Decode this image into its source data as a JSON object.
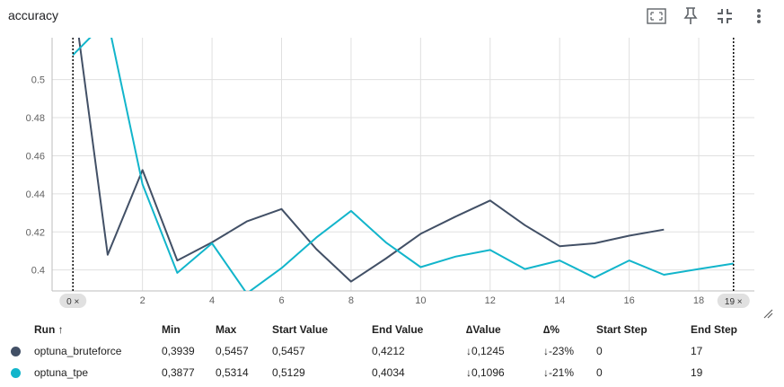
{
  "card": {
    "title": "accuracy"
  },
  "toolbar": {
    "icons": [
      "fit-to-data-icon",
      "pin-icon",
      "fullscreen-exit-icon",
      "more-vert-icon"
    ]
  },
  "colors": {
    "optuna_bruteforce": "#425066",
    "optuna_tpe": "#12b5cb",
    "grid": "#e0e0e0",
    "cursor_line": "#000000"
  },
  "chart_data": {
    "type": "line",
    "title": "accuracy",
    "xlabel": "",
    "ylabel": "",
    "xlim": [
      -0.6,
      19.6
    ],
    "ylim": [
      0.389,
      0.522
    ],
    "x_ticks": [
      2,
      4,
      6,
      8,
      10,
      12,
      14,
      16,
      18
    ],
    "y_ticks": [
      0.4,
      0.42,
      0.44,
      0.46,
      0.48,
      0.5
    ],
    "y_tick_labels": [
      "0.4",
      "0.42",
      "0.44",
      "0.46",
      "0.48",
      "0.5"
    ],
    "grid": true,
    "cursors": [
      {
        "step": 0,
        "label": "0"
      },
      {
        "step": 19,
        "label": "19"
      }
    ],
    "series": [
      {
        "name": "optuna_bruteforce",
        "x": [
          0,
          1,
          2,
          3,
          4,
          5,
          6,
          7,
          8,
          9,
          10,
          11,
          12,
          13,
          14,
          15,
          16,
          17
        ],
        "values": [
          0.5457,
          0.408,
          0.4525,
          0.405,
          0.4145,
          0.4255,
          0.432,
          0.411,
          0.3939,
          0.406,
          0.419,
          0.428,
          0.4365,
          0.4235,
          0.4125,
          0.414,
          0.418,
          0.4212
        ]
      },
      {
        "name": "optuna_tpe",
        "x": [
          0,
          1,
          2,
          3,
          4,
          5,
          6,
          7,
          8,
          9,
          10,
          11,
          12,
          13,
          14,
          15,
          16,
          17,
          18,
          19
        ],
        "values": [
          0.5129,
          0.5314,
          0.445,
          0.3985,
          0.414,
          0.3877,
          0.401,
          0.417,
          0.431,
          0.4145,
          0.4015,
          0.407,
          0.4105,
          0.4005,
          0.405,
          0.396,
          0.405,
          0.3975,
          0.4005,
          0.4034
        ]
      }
    ]
  },
  "table": {
    "headers": {
      "run": "Run ↑",
      "min": "Min",
      "max": "Max",
      "start_value": "Start Value",
      "end_value": "End Value",
      "delta_value": "∆Value",
      "delta_pct": "∆%",
      "start_step": "Start Step",
      "end_step": "End Step"
    },
    "rows": [
      {
        "run": "optuna_bruteforce",
        "min": "0,3939",
        "max": "0,5457",
        "start_value": "0,5457",
        "end_value": "0,4212",
        "delta_value": "↓0,1245",
        "delta_pct": "↓-23%",
        "start_step": "0",
        "end_step": "17"
      },
      {
        "run": "optuna_tpe",
        "min": "0,3877",
        "max": "0,5314",
        "start_value": "0,5129",
        "end_value": "0,4034",
        "delta_value": "↓0,1096",
        "delta_pct": "↓-21%",
        "start_step": "0",
        "end_step": "19"
      }
    ]
  }
}
